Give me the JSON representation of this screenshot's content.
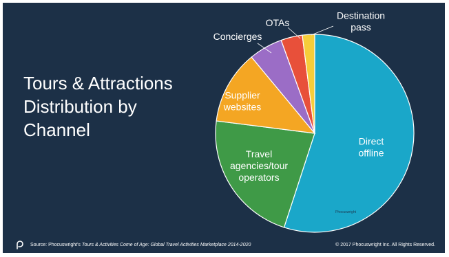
{
  "title_lines": [
    "Tours & Attractions",
    "Distribution by",
    "Channel"
  ],
  "chart_data": {
    "type": "pie",
    "title": "Tours & Attractions Distribution by Channel",
    "start_angle_deg": 0,
    "direction": "clockwise",
    "slices": [
      {
        "label_lines": [
          "Direct",
          "offline"
        ],
        "value": 55,
        "color": "#1aa7c9",
        "label_color": "#ffffff",
        "label_inside": true
      },
      {
        "label_lines": [
          "Travel",
          "agencies/tour",
          "operators"
        ],
        "value": 22,
        "color": "#3f9a47",
        "label_color": "#ffffff",
        "label_inside": true
      },
      {
        "label_lines": [
          "Supplier",
          "websites"
        ],
        "value": 12,
        "color": "#f4a623",
        "label_color": "#ffffff",
        "label_inside": true
      },
      {
        "label_lines": [
          "Concierges"
        ],
        "value": 5.5,
        "color": "#9b6dc6",
        "label_color": "#ffffff",
        "label_inside": false
      },
      {
        "label_lines": [
          "OTAs"
        ],
        "value": 3.5,
        "color": "#e8503a",
        "label_color": "#ffffff",
        "label_inside": false
      },
      {
        "label_lines": [
          "Destination",
          "pass"
        ],
        "value": 2,
        "color": "#f6cd3a",
        "label_color": "#ffffff",
        "label_inside": false
      }
    ],
    "watermark": "Phocuswright"
  },
  "footer": {
    "source_prefix": "Source: Phocuswright's ",
    "source_title": "Tours & Activities Come of Age: Global Travel Activities Marketplace 2014-2020",
    "copyright": "© 2017 Phocuswright Inc. All Rights Reserved."
  }
}
